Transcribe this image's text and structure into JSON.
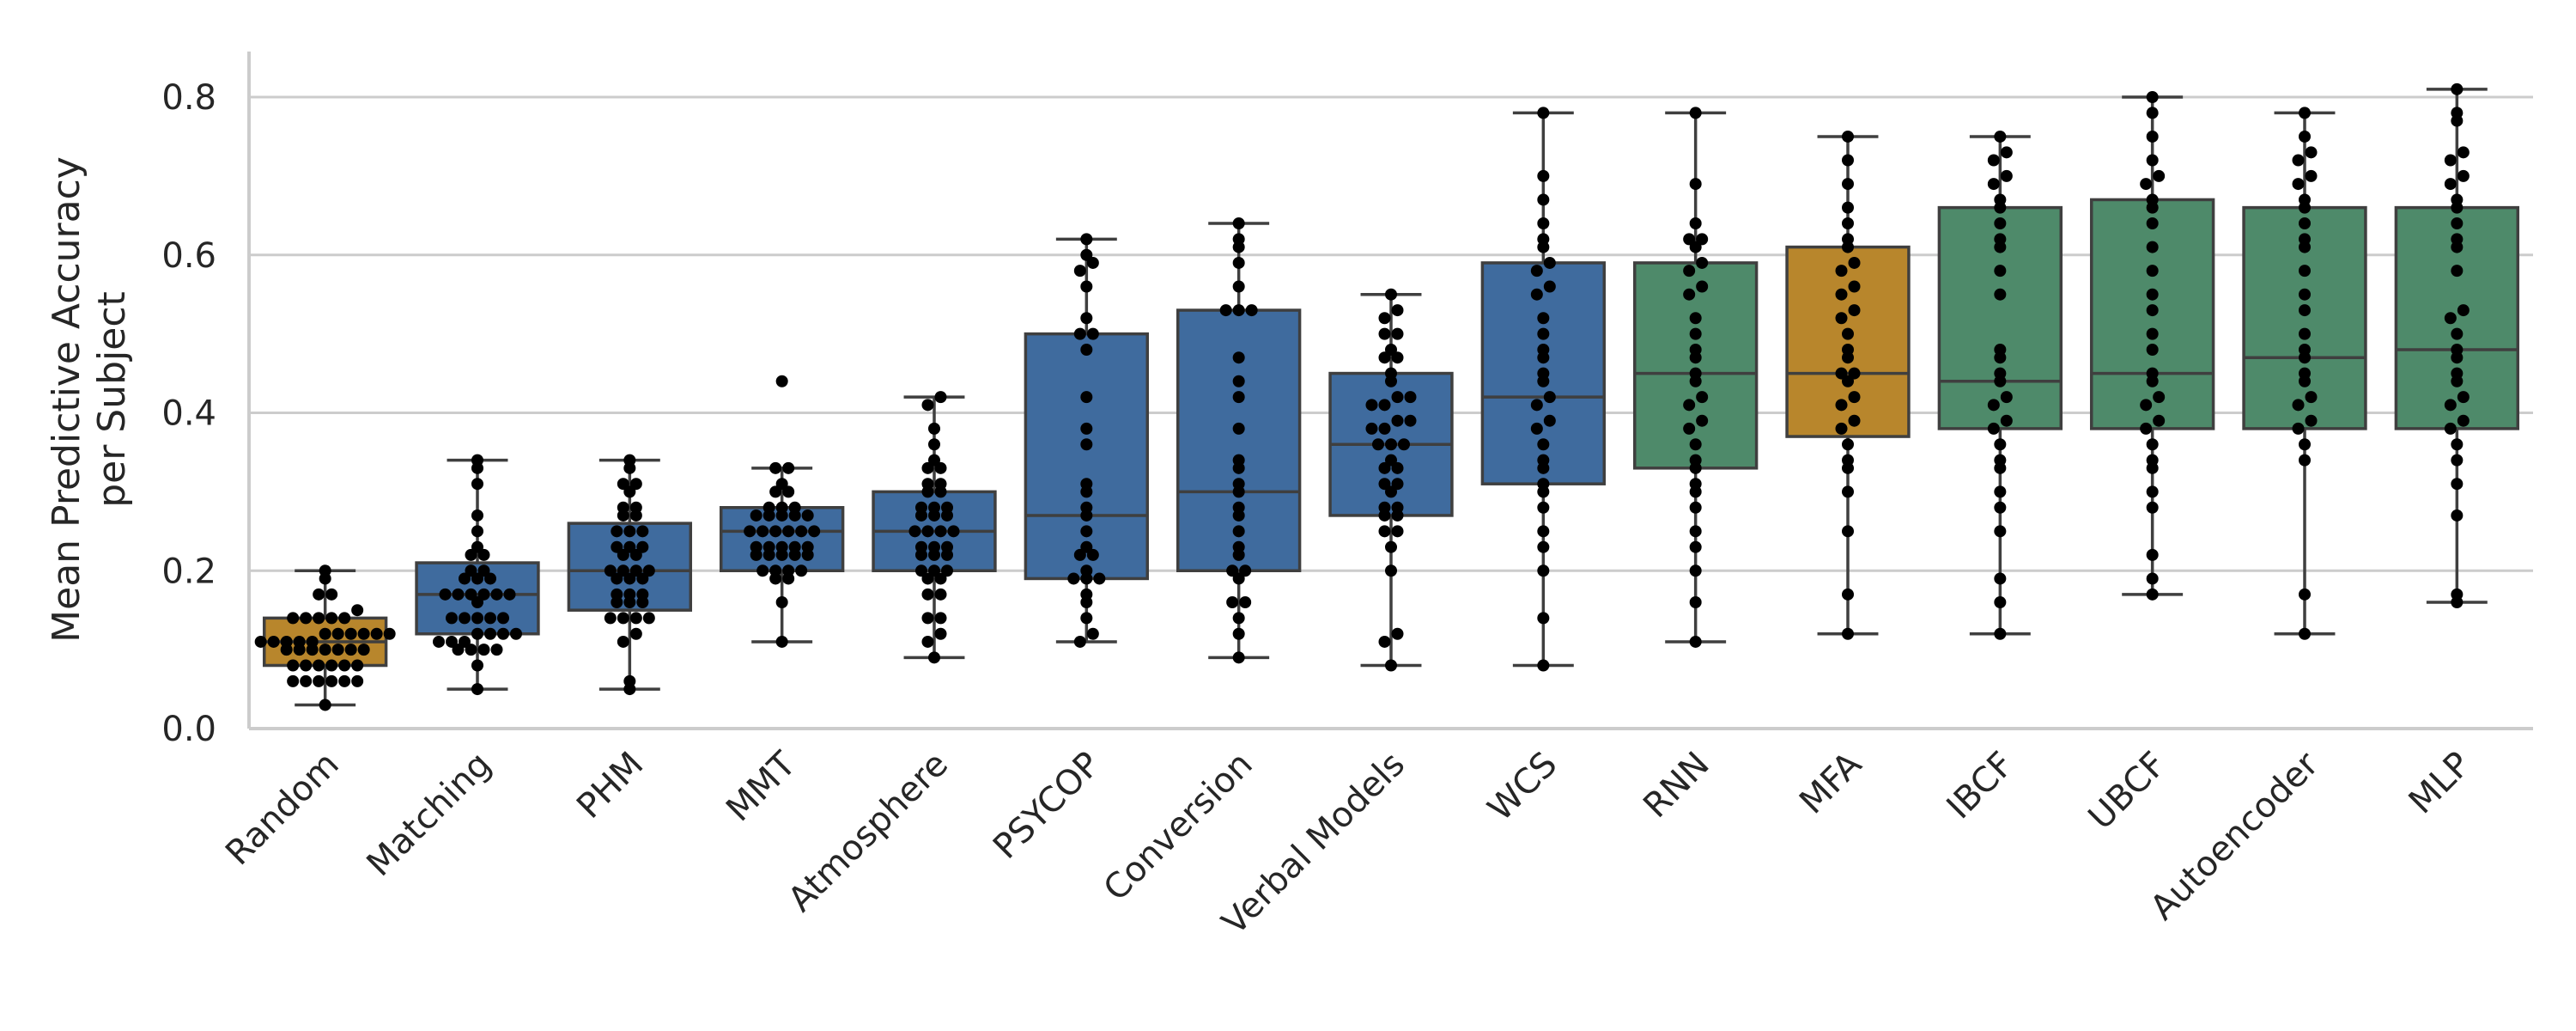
{
  "chart_data": {
    "type": "box-swarm",
    "title": "",
    "xlabel": "",
    "ylabel_lines": [
      "Mean Predictive Accuracy",
      "per Subject"
    ],
    "ylim": [
      0.0,
      0.85
    ],
    "yticks": [
      0.0,
      0.2,
      0.4,
      0.6,
      0.8
    ],
    "ytick_labels": [
      "0.0",
      "0.2",
      "0.4",
      "0.6",
      "0.8"
    ],
    "grid": "horizontal",
    "legend": "none",
    "colors": {
      "orange": "#B8862C",
      "blue": "#3F6B9E",
      "green": "#4E8A6A"
    },
    "categories": [
      "Random",
      "Matching",
      "PHM",
      "MMT",
      "Atmosphere",
      "PSYCOP",
      "Conversion",
      "Verbal Models",
      "WCS",
      "RNN",
      "MFA",
      "IBCF",
      "UBCF",
      "Autoencoder",
      "MLP"
    ],
    "boxes": [
      {
        "label": "Random",
        "color": "orange",
        "q1": 0.08,
        "median": 0.11,
        "q3": 0.14,
        "whislo": 0.03,
        "whishi": 0.2,
        "points": [
          0.03,
          0.06,
          0.06,
          0.06,
          0.06,
          0.06,
          0.06,
          0.08,
          0.08,
          0.08,
          0.08,
          0.08,
          0.08,
          0.1,
          0.1,
          0.1,
          0.1,
          0.1,
          0.1,
          0.1,
          0.11,
          0.11,
          0.11,
          0.11,
          0.11,
          0.12,
          0.12,
          0.12,
          0.12,
          0.12,
          0.12,
          0.14,
          0.14,
          0.14,
          0.14,
          0.14,
          0.15,
          0.17,
          0.17,
          0.19,
          0.2
        ]
      },
      {
        "label": "Matching",
        "color": "blue",
        "q1": 0.12,
        "median": 0.17,
        "q3": 0.21,
        "whislo": 0.05,
        "whishi": 0.34,
        "points": [
          0.05,
          0.08,
          0.1,
          0.1,
          0.1,
          0.1,
          0.11,
          0.11,
          0.11,
          0.12,
          0.12,
          0.12,
          0.12,
          0.14,
          0.14,
          0.14,
          0.14,
          0.14,
          0.16,
          0.17,
          0.17,
          0.17,
          0.17,
          0.17,
          0.17,
          0.19,
          0.19,
          0.19,
          0.2,
          0.2,
          0.22,
          0.22,
          0.23,
          0.25,
          0.27,
          0.31,
          0.33,
          0.34
        ]
      },
      {
        "label": "PHM",
        "color": "blue",
        "q1": 0.15,
        "median": 0.2,
        "q3": 0.26,
        "whislo": 0.05,
        "whishi": 0.34,
        "points": [
          0.05,
          0.06,
          0.11,
          0.12,
          0.14,
          0.14,
          0.14,
          0.14,
          0.16,
          0.16,
          0.16,
          0.17,
          0.17,
          0.17,
          0.19,
          0.19,
          0.19,
          0.2,
          0.2,
          0.2,
          0.2,
          0.22,
          0.22,
          0.23,
          0.23,
          0.23,
          0.25,
          0.25,
          0.25,
          0.27,
          0.27,
          0.28,
          0.28,
          0.3,
          0.31,
          0.31,
          0.33,
          0.34
        ]
      },
      {
        "label": "MMT",
        "color": "blue",
        "q1": 0.2,
        "median": 0.25,
        "q3": 0.28,
        "whislo": 0.11,
        "whishi": 0.33,
        "points": [
          0.11,
          0.16,
          0.19,
          0.19,
          0.2,
          0.2,
          0.2,
          0.2,
          0.22,
          0.22,
          0.22,
          0.22,
          0.22,
          0.23,
          0.23,
          0.23,
          0.23,
          0.23,
          0.25,
          0.25,
          0.25,
          0.25,
          0.25,
          0.25,
          0.27,
          0.27,
          0.27,
          0.27,
          0.27,
          0.28,
          0.28,
          0.28,
          0.3,
          0.3,
          0.31,
          0.33,
          0.33,
          0.44
        ]
      },
      {
        "label": "Atmosphere",
        "color": "blue",
        "q1": 0.2,
        "median": 0.25,
        "q3": 0.3,
        "whislo": 0.09,
        "whishi": 0.42,
        "points": [
          0.09,
          0.11,
          0.12,
          0.14,
          0.14,
          0.17,
          0.17,
          0.19,
          0.19,
          0.2,
          0.2,
          0.2,
          0.22,
          0.22,
          0.22,
          0.23,
          0.23,
          0.23,
          0.25,
          0.25,
          0.25,
          0.25,
          0.27,
          0.27,
          0.27,
          0.28,
          0.28,
          0.28,
          0.3,
          0.3,
          0.31,
          0.31,
          0.33,
          0.33,
          0.34,
          0.36,
          0.38,
          0.41,
          0.42
        ]
      },
      {
        "label": "PSYCOP",
        "color": "blue",
        "q1": 0.19,
        "median": 0.27,
        "q3": 0.5,
        "whislo": 0.11,
        "whishi": 0.62,
        "points": [
          0.11,
          0.12,
          0.14,
          0.16,
          0.17,
          0.19,
          0.19,
          0.19,
          0.2,
          0.22,
          0.22,
          0.23,
          0.25,
          0.27,
          0.28,
          0.3,
          0.31,
          0.36,
          0.38,
          0.42,
          0.48,
          0.5,
          0.5,
          0.52,
          0.56,
          0.58,
          0.59,
          0.6,
          0.62
        ]
      },
      {
        "label": "Conversion",
        "color": "blue",
        "q1": 0.2,
        "median": 0.3,
        "q3": 0.53,
        "whislo": 0.09,
        "whishi": 0.64,
        "points": [
          0.09,
          0.12,
          0.14,
          0.16,
          0.16,
          0.19,
          0.2,
          0.2,
          0.22,
          0.23,
          0.25,
          0.27,
          0.28,
          0.3,
          0.31,
          0.33,
          0.34,
          0.38,
          0.42,
          0.44,
          0.47,
          0.53,
          0.53,
          0.53,
          0.56,
          0.59,
          0.61,
          0.62,
          0.64
        ]
      },
      {
        "label": "Verbal Models",
        "color": "blue",
        "q1": 0.27,
        "median": 0.36,
        "q3": 0.45,
        "whislo": 0.08,
        "whishi": 0.55,
        "points": [
          0.08,
          0.11,
          0.12,
          0.2,
          0.23,
          0.25,
          0.25,
          0.27,
          0.27,
          0.28,
          0.28,
          0.3,
          0.31,
          0.31,
          0.33,
          0.33,
          0.34,
          0.36,
          0.36,
          0.36,
          0.38,
          0.38,
          0.39,
          0.39,
          0.41,
          0.41,
          0.42,
          0.42,
          0.44,
          0.45,
          0.47,
          0.47,
          0.48,
          0.5,
          0.5,
          0.52,
          0.53,
          0.55
        ]
      },
      {
        "label": "WCS",
        "color": "blue",
        "q1": 0.31,
        "median": 0.42,
        "q3": 0.59,
        "whislo": 0.08,
        "whishi": 0.78,
        "points": [
          0.08,
          0.14,
          0.2,
          0.23,
          0.25,
          0.28,
          0.3,
          0.31,
          0.33,
          0.34,
          0.36,
          0.38,
          0.39,
          0.41,
          0.42,
          0.44,
          0.45,
          0.47,
          0.48,
          0.5,
          0.52,
          0.55,
          0.56,
          0.58,
          0.59,
          0.61,
          0.62,
          0.64,
          0.67,
          0.7,
          0.78
        ]
      },
      {
        "label": "RNN",
        "color": "green",
        "q1": 0.33,
        "median": 0.45,
        "q3": 0.59,
        "whislo": 0.11,
        "whishi": 0.78,
        "points": [
          0.11,
          0.16,
          0.2,
          0.23,
          0.25,
          0.28,
          0.3,
          0.31,
          0.33,
          0.34,
          0.36,
          0.38,
          0.39,
          0.41,
          0.42,
          0.44,
          0.45,
          0.47,
          0.48,
          0.5,
          0.52,
          0.55,
          0.56,
          0.58,
          0.59,
          0.61,
          0.62,
          0.62,
          0.64,
          0.69,
          0.78
        ]
      },
      {
        "label": "MFA",
        "color": "orange",
        "q1": 0.37,
        "median": 0.45,
        "q3": 0.61,
        "whislo": 0.12,
        "whishi": 0.75,
        "points": [
          0.12,
          0.17,
          0.25,
          0.3,
          0.33,
          0.34,
          0.36,
          0.38,
          0.39,
          0.41,
          0.42,
          0.44,
          0.45,
          0.45,
          0.47,
          0.48,
          0.5,
          0.52,
          0.53,
          0.55,
          0.56,
          0.58,
          0.59,
          0.61,
          0.62,
          0.64,
          0.66,
          0.69,
          0.72,
          0.75
        ]
      },
      {
        "label": "IBCF",
        "color": "green",
        "q1": 0.38,
        "median": 0.44,
        "q3": 0.66,
        "whislo": 0.12,
        "whishi": 0.75,
        "points": [
          0.12,
          0.16,
          0.19,
          0.25,
          0.28,
          0.3,
          0.33,
          0.34,
          0.36,
          0.38,
          0.39,
          0.41,
          0.42,
          0.44,
          0.45,
          0.47,
          0.48,
          0.55,
          0.58,
          0.61,
          0.62,
          0.64,
          0.66,
          0.67,
          0.69,
          0.7,
          0.72,
          0.73,
          0.75
        ]
      },
      {
        "label": "UBCF",
        "color": "green",
        "q1": 0.38,
        "median": 0.45,
        "q3": 0.67,
        "whislo": 0.17,
        "whishi": 0.8,
        "points": [
          0.17,
          0.19,
          0.22,
          0.28,
          0.3,
          0.33,
          0.34,
          0.36,
          0.38,
          0.39,
          0.41,
          0.42,
          0.44,
          0.45,
          0.48,
          0.5,
          0.53,
          0.55,
          0.58,
          0.61,
          0.64,
          0.66,
          0.67,
          0.69,
          0.7,
          0.72,
          0.75,
          0.78,
          0.8
        ]
      },
      {
        "label": "Autoencoder",
        "color": "green",
        "q1": 0.38,
        "median": 0.47,
        "q3": 0.66,
        "whislo": 0.12,
        "whishi": 0.78,
        "points": [
          0.12,
          0.17,
          0.34,
          0.36,
          0.38,
          0.39,
          0.41,
          0.42,
          0.44,
          0.45,
          0.47,
          0.48,
          0.5,
          0.53,
          0.55,
          0.58,
          0.61,
          0.62,
          0.64,
          0.66,
          0.67,
          0.69,
          0.7,
          0.72,
          0.73,
          0.75,
          0.78
        ]
      },
      {
        "label": "MLP",
        "color": "green",
        "q1": 0.38,
        "median": 0.48,
        "q3": 0.66,
        "whislo": 0.16,
        "whishi": 0.81,
        "points": [
          0.16,
          0.17,
          0.27,
          0.31,
          0.34,
          0.36,
          0.38,
          0.39,
          0.41,
          0.42,
          0.44,
          0.45,
          0.47,
          0.48,
          0.5,
          0.52,
          0.53,
          0.58,
          0.61,
          0.62,
          0.64,
          0.66,
          0.67,
          0.69,
          0.7,
          0.72,
          0.73,
          0.77,
          0.78,
          0.81
        ]
      }
    ]
  }
}
